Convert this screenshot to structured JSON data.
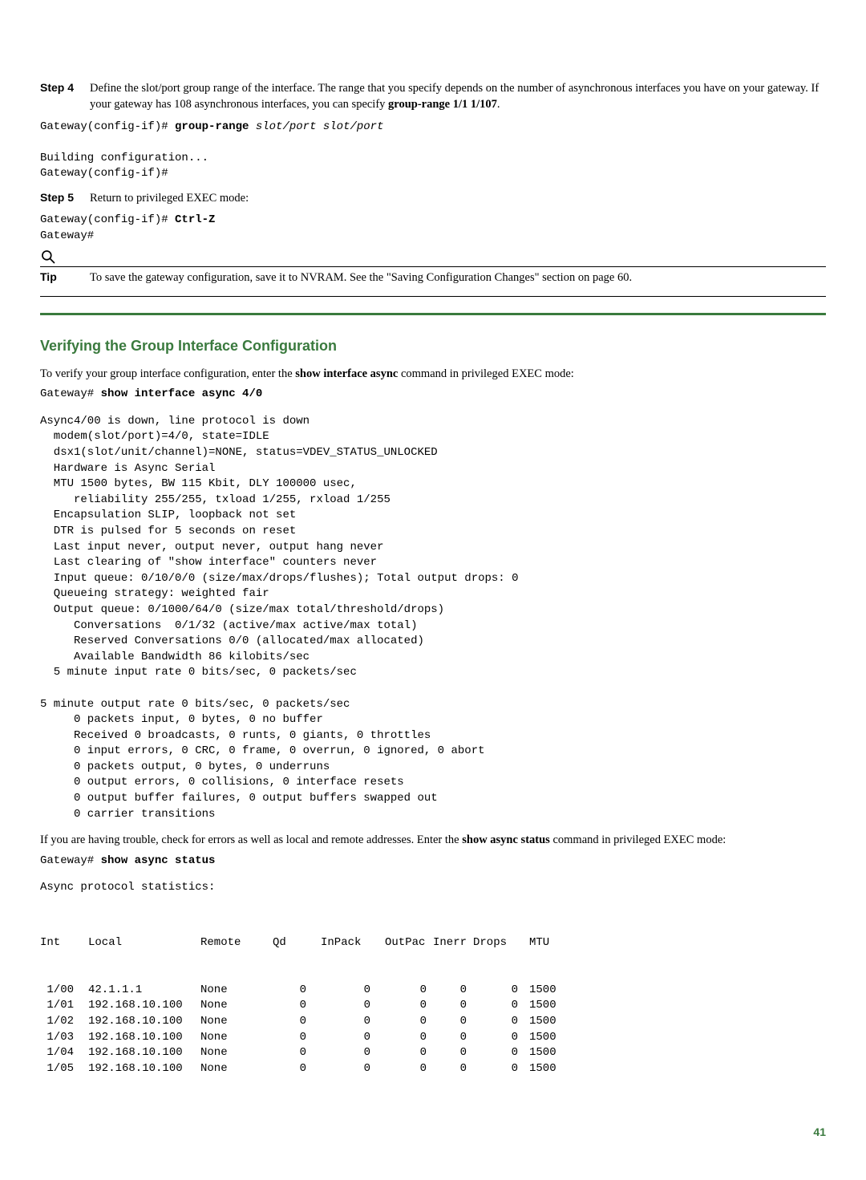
{
  "step4": {
    "label": "Step 4",
    "text_part1": "Define the slot/port group range of the interface. The range that you specify depends on the number of asynchronous interfaces you have on your gateway. If your gateway has 108 asynchronous interfaces, you can specify ",
    "text_bold": "group-range 1/1 1/107",
    "text_part2": "."
  },
  "code1_line1_prefix": "Gateway(config-if)# ",
  "code1_line1_bold": "group-range",
  "code1_line1_italic": " slot/port slot/port",
  "code1_line2": "",
  "code1_line3": "Building configuration...",
  "code1_line4": "Gateway(config-if)#",
  "step5": {
    "label": "Step 5",
    "text": "Return to privileged EXEC mode:"
  },
  "code2_line1_prefix": "Gateway(config-if)# ",
  "code2_line1_bold": "Ctrl-Z",
  "code2_line2": "Gateway#",
  "tip": {
    "label": "Tip",
    "text": "To save the gateway configuration, save it to NVRAM. See the \"Saving Configuration Changes\" section on page 60."
  },
  "section_heading": "Verifying the Group Interface Configuration",
  "verify_para_pre": "To verify your group interface configuration, enter the ",
  "verify_para_bold": "show interface async",
  "verify_para_post": " command in privileged EXEC mode:",
  "code3_prefix": "Gateway# ",
  "code3_bold": "show interface async 4/0",
  "async_output": "Async4/00 is down, line protocol is down\n  modem(slot/port)=4/0, state=IDLE\n  dsx1(slot/unit/channel)=NONE, status=VDEV_STATUS_UNLOCKED\n  Hardware is Async Serial\n  MTU 1500 bytes, BW 115 Kbit, DLY 100000 usec,\n     reliability 255/255, txload 1/255, rxload 1/255\n  Encapsulation SLIP, loopback not set\n  DTR is pulsed for 5 seconds on reset\n  Last input never, output never, output hang never\n  Last clearing of \"show interface\" counters never\n  Input queue: 0/10/0/0 (size/max/drops/flushes); Total output drops: 0\n  Queueing strategy: weighted fair\n  Output queue: 0/1000/64/0 (size/max total/threshold/drops)\n     Conversations  0/1/32 (active/max active/max total)\n     Reserved Conversations 0/0 (allocated/max allocated)\n     Available Bandwidth 86 kilobits/sec\n  5 minute input rate 0 bits/sec, 0 packets/sec\n\n5 minute output rate 0 bits/sec, 0 packets/sec\n     0 packets input, 0 bytes, 0 no buffer\n     Received 0 broadcasts, 0 runts, 0 giants, 0 throttles\n     0 input errors, 0 CRC, 0 frame, 0 overrun, 0 ignored, 0 abort\n     0 packets output, 0 bytes, 0 underruns\n     0 output errors, 0 collisions, 0 interface resets\n     0 output buffer failures, 0 output buffers swapped out\n     0 carrier transitions",
  "trouble_para_pre": "If you are having trouble, check for errors as well as local and remote addresses. Enter the ",
  "trouble_para_bold": "show async status",
  "trouble_para_post": " command in privileged EXEC mode:",
  "code4_prefix": "Gateway# ",
  "code4_bold": "show async status",
  "stats_heading": "Async protocol statistics:",
  "stats_header": {
    "c0": "Int",
    "c1": "Local",
    "c2": "Remote",
    "c3": "Qd",
    "c4": "InPack",
    "c5": "OutPac",
    "c6": "Inerr",
    "c7": "Drops",
    "c8": "MTU"
  },
  "stats_rows": [
    {
      "c0": " 1/00",
      "c1": "42.1.1.1",
      "c2": "None",
      "c3": "0",
      "c4": "0",
      "c5": "0",
      "c6": "0",
      "c7": "0",
      "c8": "1500"
    },
    {
      "c0": " 1/01",
      "c1": "192.168.10.100",
      "c2": "None",
      "c3": "0",
      "c4": "0",
      "c5": "0",
      "c6": "0",
      "c7": "0",
      "c8": "1500"
    },
    {
      "c0": " 1/02",
      "c1": "192.168.10.100",
      "c2": "None",
      "c3": "0",
      "c4": "0",
      "c5": "0",
      "c6": "0",
      "c7": "0",
      "c8": "1500"
    },
    {
      "c0": " 1/03",
      "c1": "192.168.10.100",
      "c2": "None",
      "c3": "0",
      "c4": "0",
      "c5": "0",
      "c6": "0",
      "c7": "0",
      "c8": "1500"
    },
    {
      "c0": " 1/04",
      "c1": "192.168.10.100",
      "c2": "None",
      "c3": "0",
      "c4": "0",
      "c5": "0",
      "c6": "0",
      "c7": "0",
      "c8": "1500"
    },
    {
      "c0": " 1/05",
      "c1": "192.168.10.100",
      "c2": "None",
      "c3": "0",
      "c4": "0",
      "c5": "0",
      "c6": "0",
      "c7": "0",
      "c8": "1500"
    }
  ],
  "page_number": "41",
  "colors": {
    "accent": "#3a7a3e",
    "text": "#000000",
    "bg": "#ffffff"
  }
}
